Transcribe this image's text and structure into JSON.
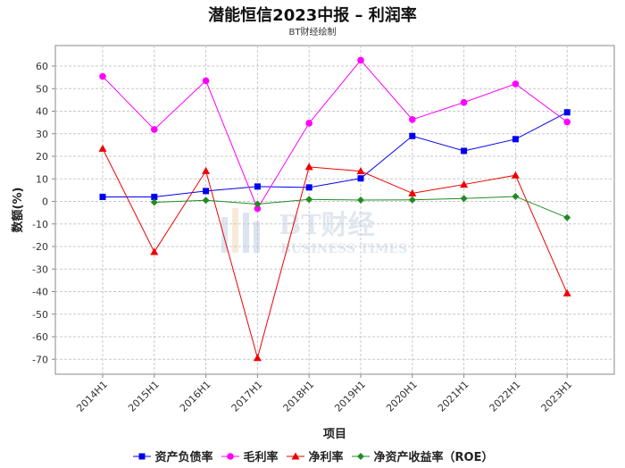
{
  "title": "潜能恒信2023中报 – 利润率",
  "subtitle": "BT财经绘制",
  "watermark": {
    "main": "BT财经",
    "sub": "BUSINESS TIMES"
  },
  "chart_data": {
    "type": "line",
    "categories": [
      "2014H1",
      "2015H1",
      "2016H1",
      "2017H1",
      "2018H1",
      "2019H1",
      "2020H1",
      "2021H1",
      "2022H1",
      "2023H1"
    ],
    "xlabel": "项目",
    "ylabel": "数额(%)",
    "ylim": [
      -80,
      70
    ],
    "yticks": [
      60,
      50,
      40,
      30,
      20,
      10,
      0,
      -10,
      -20,
      -30,
      -40,
      -50,
      -60,
      -70
    ],
    "grid": true,
    "legend_position": "bottom",
    "series": [
      {
        "name": "资产负债率",
        "color": "#0000ee",
        "marker": "square",
        "values": [
          2.0,
          2.0,
          4.6,
          6.6,
          6.2,
          10.2,
          29.0,
          22.4,
          27.6,
          39.5
        ]
      },
      {
        "name": "毛利率",
        "color": "#ff00ff",
        "marker": "circle",
        "values": [
          55.4,
          31.9,
          53.5,
          -3.2,
          34.7,
          62.6,
          36.3,
          43.9,
          52.1,
          35.2
        ]
      },
      {
        "name": "净利率",
        "color": "#ee0000",
        "marker": "triangle",
        "values": [
          23.4,
          -22.4,
          13.5,
          -69.4,
          15.3,
          13.4,
          3.6,
          7.5,
          11.6,
          -40.7
        ]
      },
      {
        "name": "净资产收益率（ROE）",
        "color": "#228b22",
        "marker": "diamond",
        "values": [
          null,
          -0.4,
          0.5,
          -1.2,
          0.9,
          0.6,
          0.7,
          1.3,
          2.2,
          -7.2
        ]
      }
    ]
  }
}
